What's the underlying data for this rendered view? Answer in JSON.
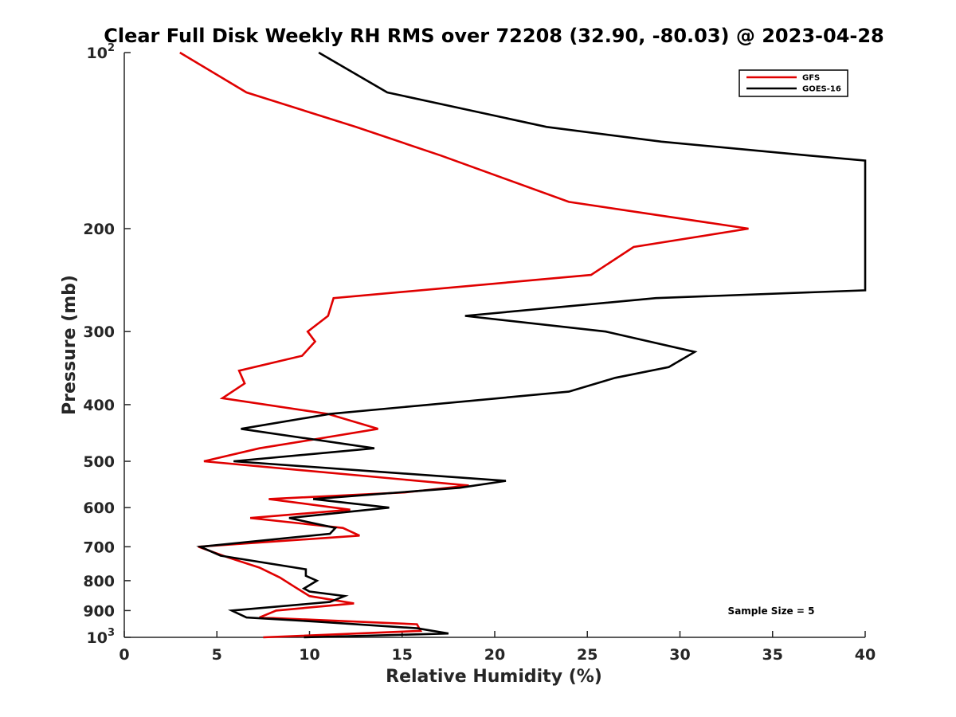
{
  "chart_data": {
    "type": "line",
    "title": "Clear Full Disk Weekly RH RMS over 72208 (32.90, -80.03) @ 2023-04-28",
    "xlabel": "Relative Humidity (%)",
    "ylabel": "Pressure (mb)",
    "xlim": [
      0,
      40
    ],
    "ylim": [
      100,
      1000
    ],
    "y_scale": "log",
    "y_reversed": true,
    "grid": false,
    "legend_position": "top-right",
    "annotation": "Sample Size = 5",
    "x_ticks": [
      0,
      5,
      10,
      15,
      20,
      25,
      30,
      35,
      40
    ],
    "y_ticks": [
      {
        "value": 100,
        "label": "10",
        "sup": "2"
      },
      {
        "value": 200,
        "label": "200",
        "sup": ""
      },
      {
        "value": 300,
        "label": "300",
        "sup": ""
      },
      {
        "value": 400,
        "label": "400",
        "sup": ""
      },
      {
        "value": 500,
        "label": "500",
        "sup": ""
      },
      {
        "value": 600,
        "label": "600",
        "sup": ""
      },
      {
        "value": 700,
        "label": "700",
        "sup": ""
      },
      {
        "value": 800,
        "label": "800",
        "sup": ""
      },
      {
        "value": 900,
        "label": "900",
        "sup": ""
      },
      {
        "value": 1000,
        "label": "10",
        "sup": "3"
      }
    ],
    "series": [
      {
        "name": "GFS",
        "color": "#e00000",
        "points": [
          [
            3.0,
            100
          ],
          [
            6.6,
            117
          ],
          [
            12.5,
            134
          ],
          [
            17.1,
            150
          ],
          [
            24.0,
            180
          ],
          [
            33.7,
            200
          ],
          [
            27.5,
            215
          ],
          [
            25.2,
            240
          ],
          [
            11.3,
            263
          ],
          [
            11.0,
            282
          ],
          [
            9.9,
            300
          ],
          [
            10.3,
            312
          ],
          [
            9.6,
            330
          ],
          [
            6.2,
            350
          ],
          [
            6.5,
            368
          ],
          [
            5.3,
            390
          ],
          [
            11.0,
            415
          ],
          [
            13.7,
            440
          ],
          [
            10.0,
            460
          ],
          [
            7.3,
            475
          ],
          [
            4.3,
            500
          ],
          [
            18.6,
            550
          ],
          [
            15.2,
            565
          ],
          [
            7.8,
            580
          ],
          [
            12.2,
            605
          ],
          [
            6.8,
            625
          ],
          [
            11.8,
            650
          ],
          [
            12.7,
            670
          ],
          [
            4.0,
            700
          ],
          [
            5.6,
            730
          ],
          [
            7.3,
            760
          ],
          [
            8.4,
            790
          ],
          [
            9.2,
            820
          ],
          [
            10.0,
            850
          ],
          [
            12.4,
            875
          ],
          [
            8.2,
            900
          ],
          [
            7.3,
            925
          ],
          [
            15.8,
            950
          ],
          [
            16.0,
            975
          ],
          [
            7.5,
            1000
          ]
        ]
      },
      {
        "name": "GOES-16",
        "color": "#000000",
        "points": [
          [
            10.5,
            100
          ],
          [
            14.2,
            117
          ],
          [
            22.8,
            134
          ],
          [
            29.0,
            142
          ],
          [
            37.0,
            150
          ],
          [
            40.0,
            153
          ],
          [
            40.0,
            255
          ],
          [
            28.7,
            263
          ],
          [
            18.4,
            282
          ],
          [
            26.0,
            300
          ],
          [
            30.8,
            325
          ],
          [
            29.4,
            345
          ],
          [
            26.5,
            360
          ],
          [
            24.0,
            380
          ],
          [
            16.5,
            400
          ],
          [
            11.1,
            415
          ],
          [
            6.3,
            440
          ],
          [
            13.5,
            475
          ],
          [
            5.9,
            500
          ],
          [
            20.6,
            540
          ],
          [
            18.1,
            555
          ],
          [
            10.2,
            580
          ],
          [
            14.3,
            600
          ],
          [
            8.9,
            625
          ],
          [
            11.4,
            650
          ],
          [
            11.1,
            665
          ],
          [
            4.1,
            700
          ],
          [
            5.2,
            725
          ],
          [
            9.8,
            765
          ],
          [
            9.8,
            785
          ],
          [
            10.4,
            800
          ],
          [
            9.7,
            825
          ],
          [
            10.0,
            835
          ],
          [
            11.9,
            850
          ],
          [
            11.1,
            870
          ],
          [
            5.8,
            900
          ],
          [
            6.6,
            925
          ],
          [
            10.4,
            940
          ],
          [
            15.8,
            965
          ],
          [
            17.5,
            985
          ],
          [
            9.7,
            1000
          ]
        ]
      }
    ]
  }
}
